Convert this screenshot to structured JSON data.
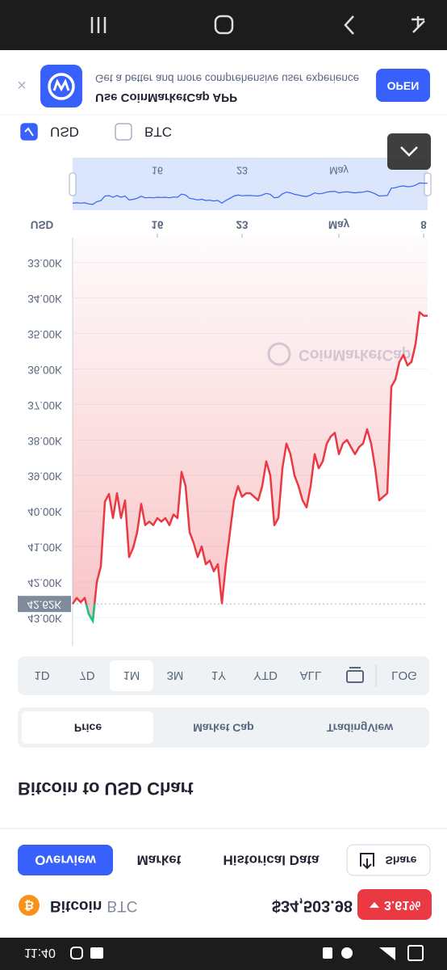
{
  "status_bar": {
    "time": "11:40"
  },
  "coin": {
    "name": "Bitcoin",
    "symbol": "BTC",
    "price": "$34,503.98",
    "change": "3.61%"
  },
  "tabs": [
    "Overview",
    "Market",
    "Historical Data",
    "Share"
  ],
  "selected_tab": 0,
  "section_title": "Bitcoin to USD Chart",
  "chart_views": [
    "Price",
    "Market Cap",
    "TradingView"
  ],
  "selected_view": 0,
  "ranges": [
    "1D",
    "7D",
    "1M",
    "3M",
    "1Y",
    "YTD",
    "ALL",
    "LOG"
  ],
  "selected_range": 2,
  "currency_toggles": [
    {
      "label": "USD",
      "checked": true
    },
    {
      "label": "BTC",
      "checked": false
    }
  ],
  "banner": {
    "title": "Use CoinMarketCap APP",
    "text": "Get a better and more comprehensive user experience",
    "button": "OPEN"
  },
  "chart_data": {
    "type": "line",
    "color": "#ea3943",
    "below_color": "#16c784",
    "axis_label": "USD",
    "watermark": "CoinMarketCap",
    "values": [
      42.62,
      42.45,
      42.57,
      42.45,
      42.9,
      43.1,
      42.0,
      41.56,
      39.74,
      39.52,
      40.2,
      39.5,
      40.2,
      39.7,
      41.3,
      41.04,
      40.6,
      39.8,
      40.4,
      40.3,
      40.4,
      40.2,
      40.3,
      40.2,
      40.4,
      40.1,
      40.2,
      38.9,
      39.3,
      40.6,
      40.9,
      41.3,
      41.0,
      41.5,
      41.4,
      41.7,
      41.5,
      42.6,
      41.5,
      40.6,
      39.7,
      39.3,
      39.6,
      39.5,
      39.5,
      39.6,
      39.7,
      39.3,
      38.6,
      39.0,
      40.4,
      40.2,
      38.8,
      38.1,
      38.4,
      39.0,
      39.3,
      39.7,
      39.9,
      39.3,
      38.4,
      38.8,
      38.6,
      38.1,
      37.9,
      37.8,
      38.4,
      38.1,
      38.0,
      38.2,
      38.4,
      38.2,
      38.1,
      37.7,
      38.1,
      38.8,
      39.7,
      39.6,
      39.5,
      36.5,
      36.3,
      35.8,
      35.6,
      35.9,
      35.8,
      35.3,
      34.4,
      34.5,
      34.5
    ],
    "xlim": [
      9,
      38.33
    ],
    "xticks": [
      16,
      23,
      {
        "value": 31,
        "label": "May"
      },
      {
        "value": 38,
        "label": "8"
      }
    ],
    "ylim": [
      32.3,
      43.8
    ],
    "yticks": [
      {
        "value": 33,
        "label": "33.00K"
      },
      {
        "value": 34,
        "label": "34.00K"
      },
      {
        "value": 35,
        "label": "35.00K"
      },
      {
        "value": 36,
        "label": "36.00K"
      },
      {
        "value": 37,
        "label": "37.00K"
      },
      {
        "value": 38,
        "label": "38.00K"
      },
      {
        "value": 39,
        "label": "39.00K"
      },
      {
        "value": 40,
        "label": "40.00K"
      },
      {
        "value": 41,
        "label": "41.00K"
      },
      {
        "value": 42,
        "label": "42.00K"
      },
      {
        "value": 43,
        "label": "43.00K"
      }
    ],
    "reference": {
      "value": 42.62,
      "label": "42.62K"
    },
    "grid": true
  }
}
